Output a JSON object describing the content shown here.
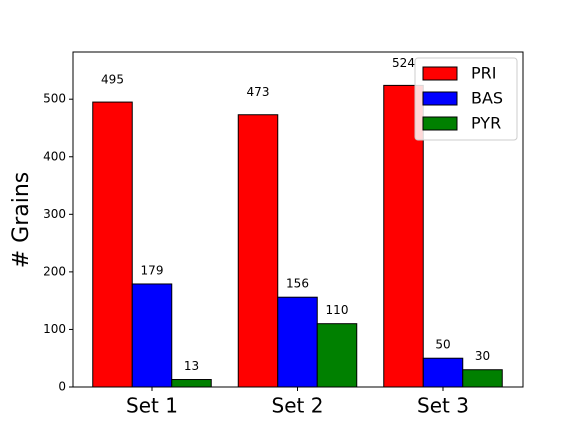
{
  "chart_data": {
    "type": "bar",
    "y_label": "# Grains",
    "categories": [
      "Set 1",
      "Set 2",
      "Set 3"
    ],
    "series": [
      {
        "name": "PRI",
        "color": "#ff0000",
        "values": [
          495,
          473,
          524
        ]
      },
      {
        "name": "BAS",
        "color": "#0000ff",
        "values": [
          179,
          156,
          50
        ]
      },
      {
        "name": "PYR",
        "color": "#008000",
        "values": [
          13,
          110,
          30
        ]
      }
    ],
    "ylim": [
      0,
      582
    ],
    "yticks": [
      0,
      100,
      200,
      300,
      400,
      500
    ],
    "legend": "upper right",
    "grid": false
  }
}
